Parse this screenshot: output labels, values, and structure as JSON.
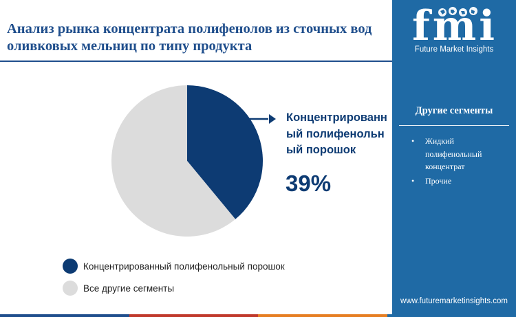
{
  "title": "Анализ рынка концентрата полифенолов из сточных вод оливковых мельниц по типу продукта",
  "chart_data": {
    "type": "pie",
    "title": "Анализ рынка концентрата полифенолов из сточных вод оливковых мельниц по типу продукта",
    "slices": [
      {
        "label": "Концентрированный полифенольный порошок",
        "value": 39,
        "color": "#0d3b73"
      },
      {
        "label": "Все другие сегменты",
        "value": 61,
        "color": "#dcdcdc"
      }
    ],
    "legend_position": "bottom-left",
    "callout": {
      "label": "Концентрированный полифенольный порошок",
      "value": "39%"
    }
  },
  "legend": [
    {
      "label": "Концентрированный полифенольный порошок",
      "color": "#0d3b73"
    },
    {
      "label": "Все другие сегменты",
      "color": "#dcdcdc"
    }
  ],
  "sidebar": {
    "logo_text": "fmi",
    "logo_subtitle": "Future Market Insights",
    "title": "Другие сегменты",
    "items": [
      "Жидкий полифенольный концентрат",
      "Прочие"
    ],
    "website": "www.futuremarketinsights.com",
    "background": "#1f6aa5"
  },
  "bottom_bar_colors": [
    "#1f4e8c",
    "#c0392b",
    "#e67e22",
    "#1f6aa5"
  ]
}
